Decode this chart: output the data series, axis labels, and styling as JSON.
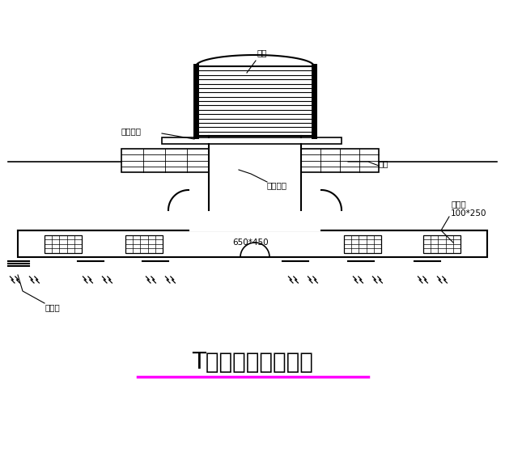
{
  "bg_color": "#ffffff",
  "line_color": "#000000",
  "title": "T型风管安装示意图",
  "title_color": "#000000",
  "underline_color": "#ff00ff",
  "label_zhuji": "主机",
  "label_anzhuang": "安装支架",
  "label_fanglou": "防漏措施",
  "label_wumian": "屋面",
  "label_songfengkou1": "送风口\n100*250",
  "label_songfengkou2": "送风口",
  "label_size": "650*450",
  "font_size_title": 20,
  "font_size_label": 8
}
